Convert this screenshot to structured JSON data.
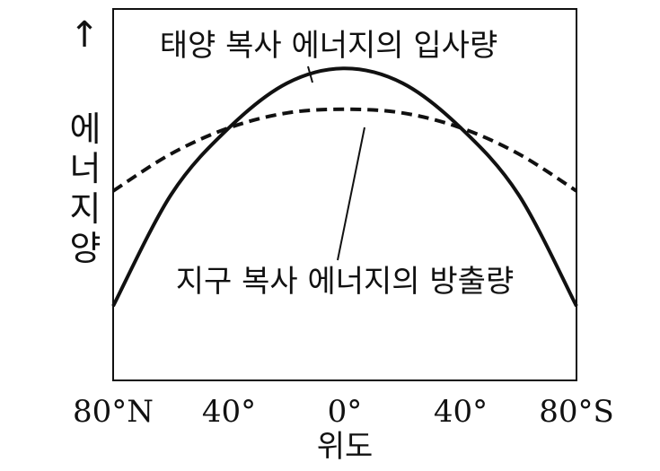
{
  "chart_data": {
    "type": "line",
    "x_unit": "latitude (degrees, N positive, S negative)",
    "x_ticks": [
      {
        "x": 80,
        "label": "80°N"
      },
      {
        "x": 40,
        "label": "40°"
      },
      {
        "x": 0,
        "label": "0°"
      },
      {
        "x": -40,
        "label": "40°"
      },
      {
        "x": -80,
        "label": "80°S"
      }
    ],
    "xlim": [
      80,
      -80
    ],
    "ylim": [
      0,
      10
    ],
    "xlabel": "위도",
    "ylabel_chars": [
      "에",
      "너",
      "지",
      "양"
    ],
    "y_arrow": "↑",
    "grid": false,
    "series": [
      {
        "name": "태양 복사 에너지의 입사량",
        "style": "solid",
        "x": [
          80,
          60,
          40,
          20,
          0,
          -20,
          -40,
          -60,
          -80
        ],
        "values": [
          2.0,
          5.0,
          6.8,
          8.0,
          8.4,
          8.0,
          6.8,
          5.0,
          2.0
        ]
      },
      {
        "name": "지구 복사 에너지의 방출량",
        "style": "dashed",
        "x": [
          80,
          60,
          40,
          20,
          0,
          -20,
          -40,
          -60,
          -80
        ],
        "values": [
          5.1,
          6.1,
          6.8,
          7.2,
          7.3,
          7.2,
          6.8,
          6.1,
          5.1
        ]
      }
    ],
    "annotations": [
      {
        "text": "태양 복사 에너지의 입사량",
        "series": 0
      },
      {
        "text": "지구 복사 에너지의 방출량",
        "series": 1
      }
    ]
  },
  "colors": {
    "ink": "#111111",
    "background": "#ffffff"
  }
}
